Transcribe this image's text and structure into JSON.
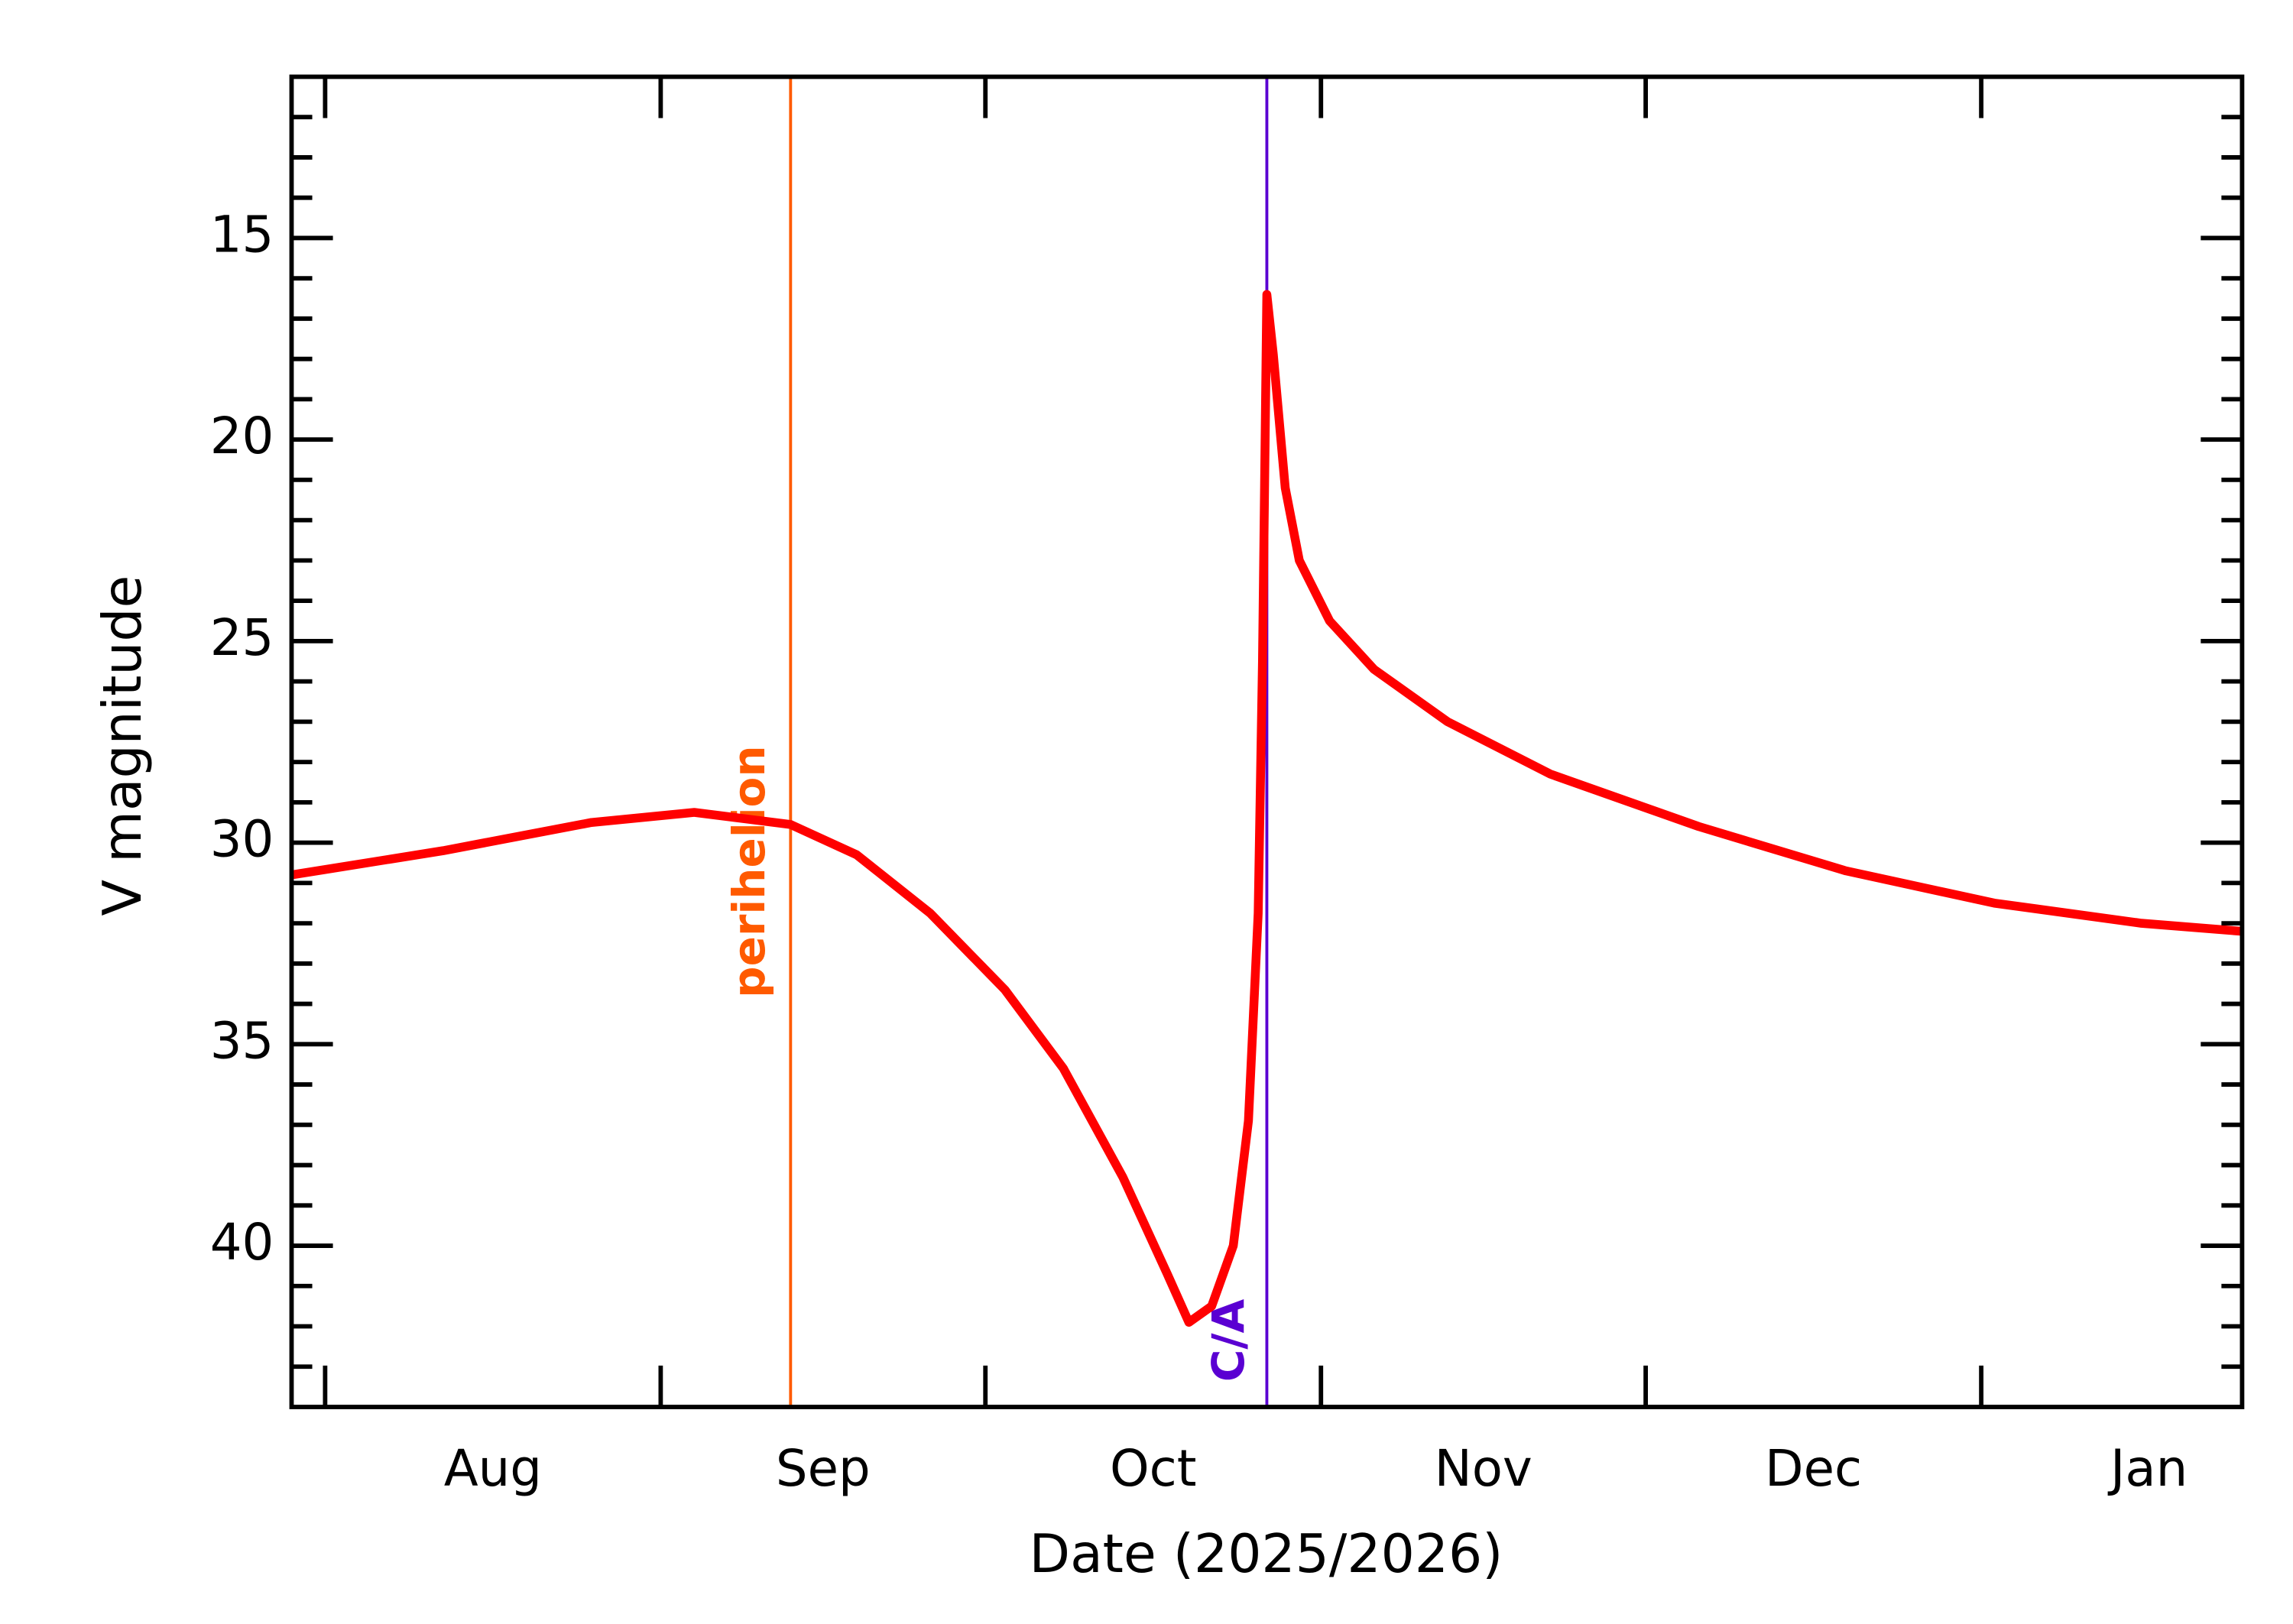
{
  "chart_data": {
    "type": "line",
    "xlabel": "Date (2025/2026)",
    "ylabel": "V magnitude",
    "xlim": [
      -3.1,
      177.1
    ],
    "xticks": [
      0,
      31,
      61,
      92,
      122,
      153
    ],
    "xtick_labels": [
      "Aug",
      "Sep",
      "Oct",
      "Nov",
      "Dec",
      "Jan"
    ],
    "ylim": [
      44,
      11
    ],
    "yticks": [
      15,
      20,
      25,
      30,
      35,
      40
    ],
    "yminor_ticks": [
      12,
      13,
      14,
      16,
      17,
      18,
      19,
      21,
      22,
      23,
      24,
      26,
      27,
      28,
      29,
      31,
      32,
      33,
      34,
      36,
      37,
      38,
      39,
      41,
      42,
      43
    ],
    "series": [
      {
        "name": "V magnitude",
        "color": "#ff0000",
        "x": [
          -3.1,
          10.9,
          24.6,
          34.1,
          43,
          49.1,
          55.9,
          62.8,
          68.2,
          73.7,
          77.8,
          79.8,
          81.9,
          83.9,
          85.3,
          86.2,
          86.6,
          87.0,
          87.6,
          88.7,
          90.0,
          92.8,
          96.9,
          103.7,
          113.2,
          126.9,
          140.5,
          154.2,
          167.8,
          177.1
        ],
        "values": [
          30.8,
          30.2,
          29.5,
          29.25,
          29.55,
          30.3,
          31.75,
          33.65,
          35.6,
          38.3,
          40.7,
          41.9,
          41.5,
          40.0,
          36.9,
          31.75,
          25.5,
          16.4,
          17.9,
          21.2,
          23.0,
          24.5,
          25.7,
          27.0,
          28.3,
          29.6,
          30.7,
          31.5,
          32.0,
          32.2
        ]
      }
    ],
    "annotations": [
      {
        "text": "perihelion",
        "x": 43,
        "color": "#ff5a00"
      },
      {
        "text": "C/A",
        "x": 87,
        "color": "#5a00d2"
      }
    ]
  }
}
